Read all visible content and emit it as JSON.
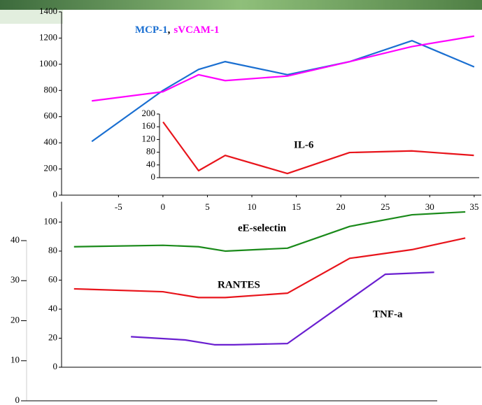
{
  "chart_data": [
    {
      "type": "line",
      "xlim": [
        -11.4,
        35.8
      ],
      "ylim": [
        0,
        1400
      ],
      "xticks": [
        -5,
        0,
        5,
        10,
        15,
        20,
        25,
        30,
        35
      ],
      "yticks": [
        0,
        200,
        400,
        600,
        800,
        1000,
        1200,
        1400
      ],
      "x": [
        -8,
        0,
        4,
        7,
        14,
        21,
        28,
        35
      ],
      "legend_separator": ",",
      "series": [
        {
          "name": "MCP-1",
          "color": "#1a6fd1",
          "values": [
            410,
            800,
            960,
            1020,
            920,
            1020,
            1180,
            980
          ]
        },
        {
          "name": "sVCAM-1",
          "color": "#ff00ff",
          "values": [
            720,
            790,
            920,
            875,
            910,
            1020,
            1135,
            1215
          ]
        }
      ]
    },
    {
      "type": "line",
      "xlim": [
        -0.4,
        35.6
      ],
      "ylim": [
        0,
        200
      ],
      "yticks": [
        0,
        40,
        80,
        120,
        160,
        200
      ],
      "tick_color": "#f0a030",
      "x": [
        0,
        4,
        7,
        14,
        21,
        28,
        35
      ],
      "series": [
        {
          "name": "IL-6",
          "color": "#e8141b",
          "label_color": "#f0a030",
          "values": [
            175,
            22,
            70,
            13,
            79,
            84,
            70
          ]
        }
      ]
    },
    {
      "type": "line",
      "xlim": [
        -11.4,
        35.8
      ],
      "ylim": [
        0,
        114
      ],
      "yticks": [
        0,
        20,
        40,
        60,
        80,
        100
      ],
      "y2lim": [
        0,
        40
      ],
      "y2ticks": [
        0,
        10,
        20,
        30,
        40
      ],
      "y2tick_color": "#7a1fc8",
      "series": [
        {
          "name": "eE-selectin",
          "color": "#1a8a1a",
          "label_color": "#1a8a1a",
          "x": [
            -10,
            0,
            4,
            7,
            14,
            21,
            28,
            34
          ],
          "values": [
            83,
            84,
            83,
            80,
            82,
            97,
            105,
            107
          ]
        },
        {
          "name": "RANTES",
          "color": "#e8141b",
          "label_color": "#f08080",
          "x": [
            -10,
            0,
            4,
            7,
            14,
            21,
            28,
            34
          ],
          "values": [
            54,
            52,
            48,
            48,
            51,
            75,
            81,
            89
          ]
        },
        {
          "name": "TNF-a",
          "color": "#6a1fd0",
          "label_color": "#7a1fc8",
          "axis": "y2",
          "x": [
            -3.6,
            2.5,
            5.8,
            8,
            14,
            25,
            30.5
          ],
          "values": [
            16,
            15.2,
            14,
            14,
            14.3,
            31.6,
            32.1
          ]
        }
      ]
    }
  ]
}
